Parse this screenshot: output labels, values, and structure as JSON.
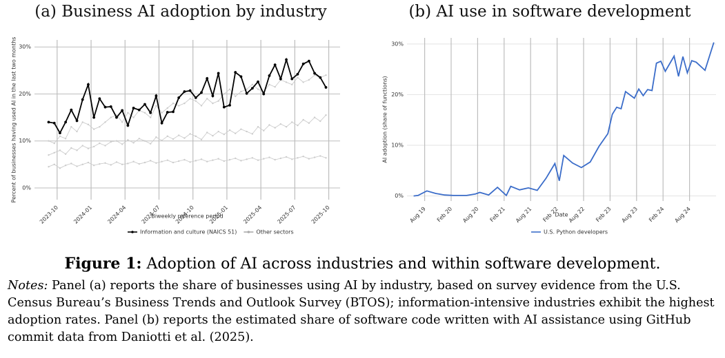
{
  "chart_data": [
    {
      "type": "line",
      "title": "(a) Business AI adoption by industry",
      "xlabel": "Biweekly reference period",
      "ylabel": "Percent of businesses having used AI in the last two months",
      "x": [
        "2023-09",
        "2023-09",
        "2023-10",
        "2023-10",
        "2023-11",
        "2023-11",
        "2023-12",
        "2023-12",
        "2024-01",
        "2024-01",
        "2024-02",
        "2024-02",
        "2024-03",
        "2024-03",
        "2024-04",
        "2024-04",
        "2024-05",
        "2024-05",
        "2024-06",
        "2024-06",
        "2024-07",
        "2024-07",
        "2024-08",
        "2024-08",
        "2024-09",
        "2024-09",
        "2024-10",
        "2024-10",
        "2024-11",
        "2024-11",
        "2024-12",
        "2024-12",
        "2025-01",
        "2025-01",
        "2025-02",
        "2025-02",
        "2025-03",
        "2025-03",
        "2025-04",
        "2025-04",
        "2025-05",
        "2025-05",
        "2025-06",
        "2025-06",
        "2025-07",
        "2025-07",
        "2025-08",
        "2025-08",
        "2025-09",
        "2025-09"
      ],
      "xlim": [
        "2023-08",
        "2025-11"
      ],
      "xticks": [
        "2023-10",
        "2024-01",
        "2024-04",
        "2024-07",
        "2024-10",
        "2025-01",
        "2025-04",
        "2025-07",
        "2025-10"
      ],
      "ylim": [
        -2.5,
        31.5
      ],
      "yticks": [
        {
          "value": 0,
          "label": "0%"
        },
        {
          "value": 10,
          "label": "10%"
        },
        {
          "value": 20,
          "label": "20%"
        },
        {
          "value": 30,
          "label": "30%"
        }
      ],
      "grid": true,
      "legend": "bottom",
      "series": [
        {
          "name": "Other sectors",
          "color": "#cccccc",
          "values": [
            10,
            9.5,
            11,
            10.5,
            13,
            12,
            14,
            13.5,
            12.5,
            13,
            14,
            15,
            15.5,
            14,
            16,
            15,
            16.5,
            16,
            15,
            17.5,
            16,
            17,
            18,
            17.5,
            18,
            19,
            18.5,
            17.5,
            19,
            18,
            18.5,
            20,
            21,
            19.5,
            20.5,
            21,
            22,
            21,
            20.5,
            22,
            21.5,
            23,
            22.5,
            22,
            23.5,
            22.5,
            23,
            24,
            23.5,
            24
          ]
        },
        {
          "name": "Other sectors",
          "color": "#cccccc",
          "values": [
            7,
            7.5,
            8,
            7.2,
            8.5,
            8,
            9,
            8.4,
            8.8,
            9.5,
            9,
            9.8,
            10,
            9.3,
            10.2,
            9.6,
            10.5,
            10,
            9.4,
            10.8,
            10.1,
            11,
            10.4,
            11.2,
            10.6,
            11.5,
            11,
            10.3,
            11.8,
            11.1,
            12,
            11.4,
            12.3,
            11.6,
            12.5,
            12,
            11.5,
            13,
            12.2,
            13.4,
            12.8,
            13.6,
            13,
            14,
            13.3,
            14.5,
            13.8,
            15,
            14.2,
            15.5
          ]
        },
        {
          "name": "Other sectors",
          "color": "#cccccc",
          "values": [
            4.5,
            5,
            4.2,
            4.8,
            5.2,
            4.6,
            5,
            5.4,
            4.8,
            5.1,
            5.3,
            4.9,
            5.5,
            5,
            5.2,
            5.6,
            5.1,
            5.4,
            5.8,
            5.3,
            5.6,
            5.9,
            5.4,
            5.7,
            6,
            5.5,
            5.8,
            6.1,
            5.6,
            5.9,
            6.2,
            5.7,
            6,
            6.3,
            5.8,
            6.1,
            6.4,
            5.9,
            6.2,
            6.5,
            6,
            6.3,
            6.6,
            6.1,
            6.4,
            6.7,
            6.2,
            6.5,
            6.8,
            6.4
          ]
        },
        {
          "name": "Information and culture (NAICS 51)",
          "color": "#000000",
          "values": [
            14,
            13.8,
            11.7,
            14,
            16.6,
            14.3,
            18.8,
            22,
            15,
            19,
            17.2,
            17.3,
            15,
            16.5,
            13.3,
            17,
            16.6,
            17.8,
            16,
            19.6,
            13.8,
            16.1,
            16.2,
            19.2,
            20.5,
            20.7,
            19.2,
            20.3,
            23.3,
            19.6,
            24.4,
            17.2,
            17.6,
            24.6,
            23.7,
            20.1,
            21.2,
            22.6,
            20,
            23.9,
            26.2,
            23.2,
            27.3,
            23.2,
            24.2,
            26.4,
            27,
            24.4,
            23.5,
            21.4
          ]
        }
      ]
    },
    {
      "type": "line",
      "title": "(b) AI use in software development",
      "xlabel": "Date",
      "ylabel": "AI adoption (share of functions)",
      "x": [
        "2019-05",
        "2019-06",
        "2019-08",
        "2019-10",
        "2019-12",
        "2020-02",
        "2020-05",
        "2020-07",
        "2020-08",
        "2020-10",
        "2020-12",
        "2021-02",
        "2021-03",
        "2021-05",
        "2021-07",
        "2021-09",
        "2021-11",
        "2022-01",
        "2022-02",
        "2022-03",
        "2022-05",
        "2022-07",
        "2022-09",
        "2022-11",
        "2023-01",
        "2023-02",
        "2023-03",
        "2023-04",
        "2023-05",
        "2023-07",
        "2023-08",
        "2023-09",
        "2023-10",
        "2023-11",
        "2023-12",
        "2024-01",
        "2024-02",
        "2024-04",
        "2024-05",
        "2024-06",
        "2024-07",
        "2024-08",
        "2024-09",
        "2024-11",
        "2025-01"
      ],
      "xlim": [
        "2019-04",
        "2025-02"
      ],
      "xticks": [
        {
          "value": "2019-08",
          "label": "Aug 19"
        },
        {
          "value": "2020-02",
          "label": "Feb 20"
        },
        {
          "value": "2020-08",
          "label": "Aug 20"
        },
        {
          "value": "2021-02",
          "label": "Feb 21"
        },
        {
          "value": "2021-08",
          "label": "Aug 21"
        },
        {
          "value": "2022-02",
          "label": "Feb 22"
        },
        {
          "value": "2022-08",
          "label": "Aug 22"
        },
        {
          "value": "2023-02",
          "label": "Feb 23"
        },
        {
          "value": "2023-08",
          "label": "Aug 23"
        },
        {
          "value": "2024-02",
          "label": "Feb 24"
        },
        {
          "value": "2024-08",
          "label": "Aug 24"
        }
      ],
      "ylim": [
        -1,
        31.2
      ],
      "yticks": [
        {
          "value": 0,
          "label": "0%"
        },
        {
          "value": 10,
          "label": "10%"
        },
        {
          "value": 20,
          "label": "20%"
        },
        {
          "value": 30,
          "label": "30%"
        }
      ],
      "grid": true,
      "legend": "bottom",
      "series": [
        {
          "name": "U.S. Python developers",
          "color": "#3a6cc9",
          "values": [
            0,
            0.1,
            1.0,
            0.5,
            0.2,
            0.1,
            0.1,
            0.4,
            0.7,
            0.2,
            1.7,
            0.1,
            1.9,
            1.2,
            1.6,
            1.1,
            3.5,
            6.4,
            3.0,
            8.0,
            6.5,
            5.6,
            6.7,
            9.8,
            12.3,
            16.1,
            17.5,
            17.2,
            20.6,
            19.3,
            21.1,
            19.8,
            21,
            20.8,
            26.2,
            26.6,
            24.6,
            27.6,
            23.6,
            27.5,
            24.3,
            26.7,
            26.4,
            24.8,
            30.3
          ]
        }
      ]
    }
  ],
  "caption": {
    "label": "Figure 1:",
    "text": "Adoption of AI across industries and within software development."
  },
  "notes": {
    "label": "Notes:",
    "text": "Panel (a) reports the share of businesses using AI by industry, based on survey evidence from the U.S. Census Bureau’s Business Trends and Outlook Survey (BTOS); information-intensive industries exhibit the highest adoption rates. Panel (b) reports the estimated share of software code written with AI assistance using GitHub commit data from Daniotti et al. (2025)."
  }
}
